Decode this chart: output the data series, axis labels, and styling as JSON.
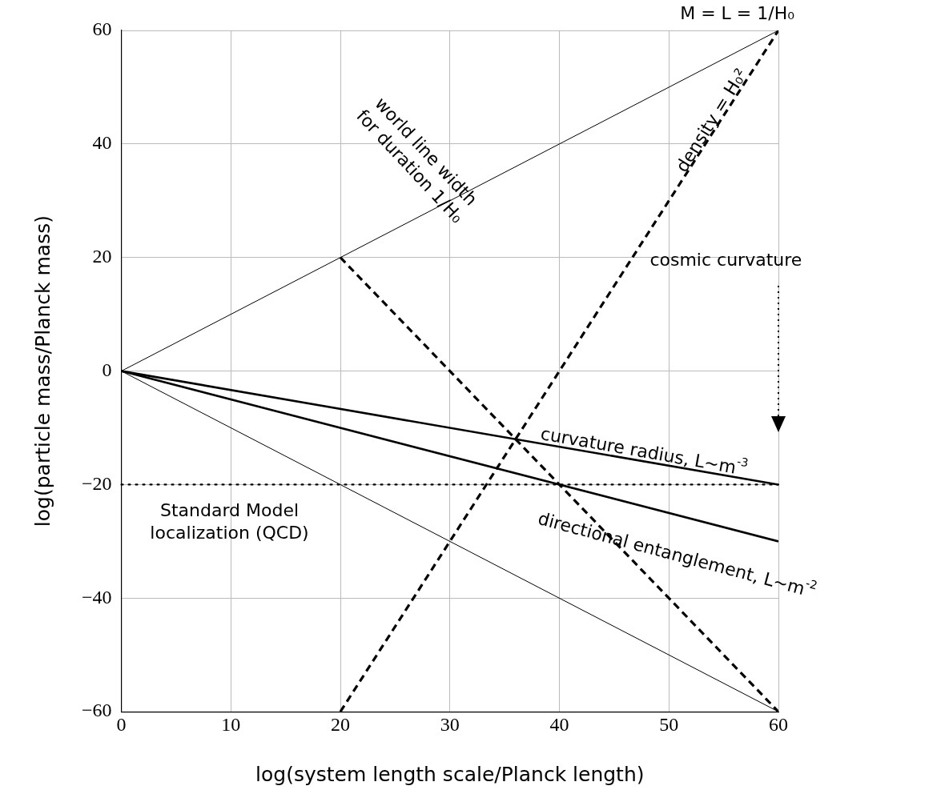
{
  "chart_data": {
    "type": "line",
    "xlabel": "log(system length scale/Planck length)",
    "ylabel": "log(particle mass/Planck mass)",
    "xlim": [
      0,
      60
    ],
    "xticks": [
      0,
      10,
      20,
      30,
      40,
      50,
      60
    ],
    "ylim": [
      -60,
      60
    ],
    "yticks": [
      {
        "value": -60,
        "label": "−60"
      },
      {
        "value": -40,
        "label": "−40"
      },
      {
        "value": -20,
        "label": "−20"
      },
      0,
      20,
      40,
      60
    ],
    "grid": true,
    "legend": false,
    "marker": "none",
    "series": [
      {
        "type": "line",
        "x": [
          0,
          60
        ],
        "values": [
          0,
          60
        ],
        "color": "#000000",
        "line_style": "solid"
      },
      {
        "type": "line",
        "x": [
          0,
          60
        ],
        "values": [
          0,
          -60
        ],
        "color": "#000000",
        "line_style": "solid"
      },
      {
        "type": "line",
        "x": [
          0,
          60
        ],
        "values": [
          0,
          -20
        ],
        "color": "#000000",
        "line_style": "solid"
      },
      {
        "type": "line",
        "x": [
          0,
          60
        ],
        "values": [
          0,
          -30
        ],
        "color": "#000000",
        "line_style": "solid"
      },
      {
        "type": "line",
        "x": [
          20,
          60
        ],
        "values": [
          20,
          -60
        ],
        "color": "#000000",
        "line_style": "dashed"
      },
      {
        "type": "line",
        "x": [
          20,
          60
        ],
        "values": [
          -60,
          60
        ],
        "color": "#000000",
        "line_style": "dashed"
      }
    ],
    "ref_lines": [
      {
        "axis": "y",
        "value": -20,
        "label": "Standard Model localization (QCD)",
        "color": "#000000",
        "line_style": "dotted"
      }
    ],
    "annotations": [
      {
        "text": "M = L = 1/H₀",
        "x": 60,
        "y": 60
      },
      "density = H₀²",
      "world line width for duration 1/H₀",
      "curvature radius, L~m$^{-3}$",
      "directional entanglement, L~m$^{-2}$",
      "cosmic curvature"
    ]
  }
}
